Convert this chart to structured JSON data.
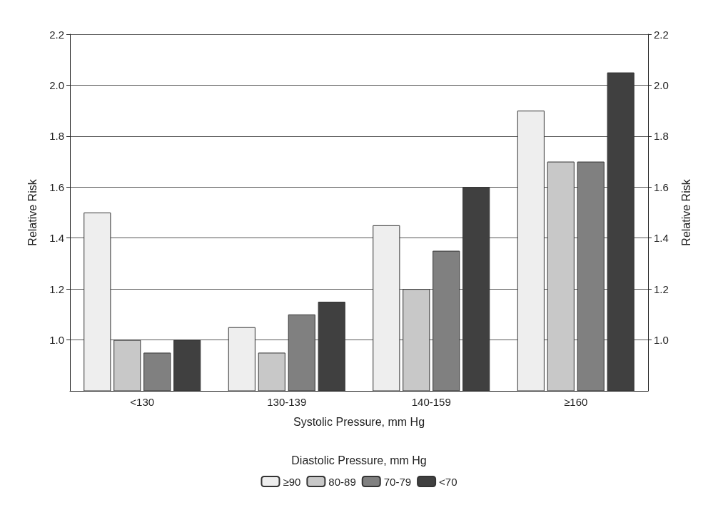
{
  "chart_data": {
    "type": "bar",
    "categories": [
      "<130",
      "130-139",
      "140-159",
      "≥160"
    ],
    "xlabel": "Systolic Pressure, mm Hg",
    "ylabel": "Relative Risk",
    "y2label": "Relative Risk",
    "legend_title": "Diastolic Pressure, mm Hg",
    "series": [
      {
        "name": "≥90",
        "color": "#eeeeee",
        "values": [
          1.5,
          1.05,
          1.45,
          1.9
        ]
      },
      {
        "name": "80-89",
        "color": "#c8c8c8",
        "values": [
          1.0,
          0.95,
          1.2,
          1.7
        ]
      },
      {
        "name": "70-79",
        "color": "#808080",
        "values": [
          0.95,
          1.1,
          1.35,
          1.7
        ]
      },
      {
        "name": "<70",
        "color": "#404040",
        "values": [
          1.0,
          1.15,
          1.6,
          2.05
        ]
      }
    ],
    "ylim": [
      0.8,
      2.2
    ],
    "yticks": [
      {
        "value": 1,
        "label": "1.0"
      },
      1.2,
      1.4,
      1.6,
      1.8,
      {
        "value": 2,
        "label": "2.0"
      },
      2.2
    ],
    "y2lim": [
      0.8,
      2.2
    ],
    "y2ticks": [
      {
        "value": 1,
        "label": "1.0"
      },
      1.2,
      1.4,
      1.6,
      1.8,
      {
        "value": 2,
        "label": "2.0"
      },
      2.2
    ],
    "grid": "y",
    "legend": "bottom"
  }
}
